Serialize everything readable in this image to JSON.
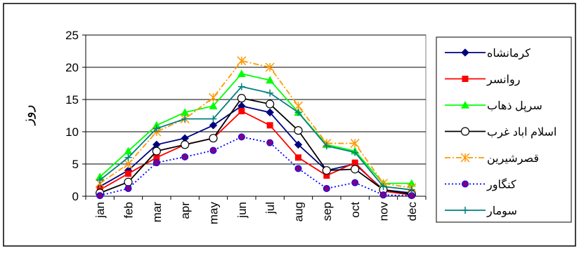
{
  "chart_data": {
    "type": "line",
    "title": "",
    "xlabel": "",
    "ylabel": "روز",
    "ylim": [
      0,
      25
    ],
    "yticks": [
      0,
      5,
      10,
      15,
      20,
      25
    ],
    "grid": "horizontal",
    "legend_position": "right",
    "categories": [
      "jan",
      "feb",
      "mar",
      "apr",
      "may",
      "jun",
      "jul",
      "aug",
      "sep",
      "oct",
      "nov",
      "dec"
    ],
    "series": [
      {
        "name": "کرمانشاه",
        "color": "#000080",
        "marker": "diamond",
        "dash": "solid",
        "values": [
          1.5,
          4,
          8,
          9,
          11,
          14,
          13,
          8,
          4,
          5,
          1,
          0.5
        ]
      },
      {
        "name": "روانسر",
        "color": "#ff0000",
        "marker": "square",
        "dash": "solid",
        "values": [
          1,
          3.5,
          6,
          8,
          9,
          13.2,
          11,
          6,
          3.2,
          5.2,
          0.8,
          0.2
        ]
      },
      {
        "name": "سرپل ذهاب",
        "color": "#00ff00",
        "marker": "triangle",
        "dash": "solid",
        "values": [
          3,
          7,
          11,
          13,
          14,
          19,
          18,
          13,
          8,
          7,
          2,
          2
        ]
      },
      {
        "name": "اسلام اباد غرب",
        "color": "#000000",
        "marker": "circle-open",
        "dash": "solid",
        "values": [
          0.5,
          2.2,
          7,
          8,
          9,
          15.2,
          14.3,
          10.2,
          4,
          4.2,
          1,
          0.3
        ]
      },
      {
        "name": "قصرشیرین",
        "color": "#ff9900",
        "marker": "star",
        "dash": "dashdot",
        "values": [
          2,
          5,
          10,
          12,
          15.3,
          21,
          20,
          14,
          8.2,
          8.2,
          2,
          1.3
        ]
      },
      {
        "name": "کنگاور",
        "color": "#0000ff",
        "marker": "circle",
        "dash": "dotted",
        "values": [
          0.1,
          1.2,
          5.2,
          6.1,
          7.1,
          9.2,
          8.3,
          4.3,
          1.2,
          2.1,
          0.2,
          0.1
        ]
      },
      {
        "name": "سومار",
        "color": "#008080",
        "marker": "plus",
        "dash": "solid",
        "values": [
          2.5,
          6,
          10.5,
          12,
          12,
          17,
          16,
          13,
          7.8,
          6.8,
          1.5,
          1
        ]
      }
    ]
  }
}
